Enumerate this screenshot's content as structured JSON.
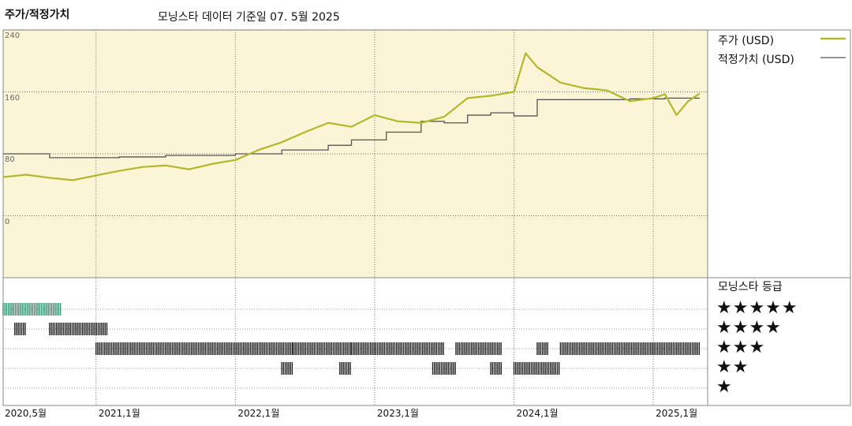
{
  "header": {
    "left_title": "주가/적정가치",
    "center_title": "모닝스타 데이터 기준일 07. 5월 2025"
  },
  "legend": {
    "price_label": "주가 (USD)",
    "fair_label": "적정가치 (USD)"
  },
  "rating": {
    "title": "모닝스타 등급",
    "levels": [
      "★★★★★",
      "★★★★",
      "★★★",
      "★★",
      "★"
    ]
  },
  "colors": {
    "plot_bg": "#faf5d7",
    "price": "#b2b82a",
    "fair": "#555555",
    "rating_5": "#3a8f73",
    "rating_bar": "#222222"
  },
  "chart_data": {
    "type": "line",
    "xlabel": "",
    "ylabel": "",
    "x_ticks": [
      "2020,5월",
      "2021,1월",
      "2022,1월",
      "2023,1월",
      "2024,1월",
      "2025,1월"
    ],
    "y_ticks": [
      0,
      80,
      160,
      240
    ],
    "ylim": [
      -80,
      240
    ],
    "xlim": [
      "2020-05",
      "2025-05"
    ],
    "grid": true,
    "legend_position": "right",
    "series": [
      {
        "name": "주가 (USD)",
        "x": [
          "2020-05",
          "2020-07",
          "2020-09",
          "2020-11",
          "2021-01",
          "2021-03",
          "2021-05",
          "2021-07",
          "2021-09",
          "2021-11",
          "2022-01",
          "2022-03",
          "2022-05",
          "2022-07",
          "2022-09",
          "2022-11",
          "2023-01",
          "2023-03",
          "2023-05",
          "2023-07",
          "2023-09",
          "2023-11",
          "2024-01",
          "2024-02",
          "2024-03",
          "2024-05",
          "2024-07",
          "2024-09",
          "2024-11",
          "2025-01",
          "2025-02",
          "2025-03",
          "2025-04",
          "2025-05"
        ],
        "values": [
          50,
          53,
          49,
          46,
          52,
          58,
          63,
          65,
          60,
          67,
          72,
          85,
          95,
          108,
          120,
          115,
          130,
          122,
          120,
          128,
          152,
          155,
          160,
          210,
          192,
          172,
          165,
          162,
          148,
          152,
          157,
          130,
          148,
          158
        ]
      },
      {
        "name": "적정가치 (USD)",
        "x": [
          "2020-05",
          "2020-09",
          "2021-03",
          "2021-07",
          "2022-01",
          "2022-05",
          "2022-09",
          "2022-11",
          "2023-02",
          "2023-05",
          "2023-07",
          "2023-09",
          "2023-11",
          "2024-01",
          "2024-03",
          "2024-07",
          "2024-11",
          "2025-02",
          "2025-05"
        ],
        "values": [
          80,
          75,
          76,
          78,
          80,
          85,
          91,
          98,
          108,
          122,
          120,
          130,
          133,
          129,
          150,
          150,
          151,
          152,
          152
        ]
      }
    ],
    "rating_history": [
      {
        "stars": 5,
        "periods": [
          [
            "2020-05",
            "2020-09"
          ]
        ]
      },
      {
        "stars": 4,
        "periods": [
          [
            "2020-06",
            "2020-06"
          ],
          [
            "2020-09",
            "2021-01"
          ]
        ]
      },
      {
        "stars": 3,
        "periods": [
          [
            "2021-01",
            "2022-05"
          ],
          [
            "2022-06",
            "2022-10"
          ],
          [
            "2022-11",
            "2023-06"
          ],
          [
            "2023-08",
            "2023-11"
          ],
          [
            "2024-03",
            "2024-03"
          ],
          [
            "2024-05",
            "2025-04"
          ]
        ]
      },
      {
        "stars": 2,
        "periods": [
          [
            "2022-05",
            "2022-05"
          ],
          [
            "2022-10",
            "2022-10"
          ],
          [
            "2023-06",
            "2023-07"
          ],
          [
            "2023-11",
            "2023-11"
          ],
          [
            "2024-01",
            "2024-04"
          ]
        ]
      }
    ]
  }
}
